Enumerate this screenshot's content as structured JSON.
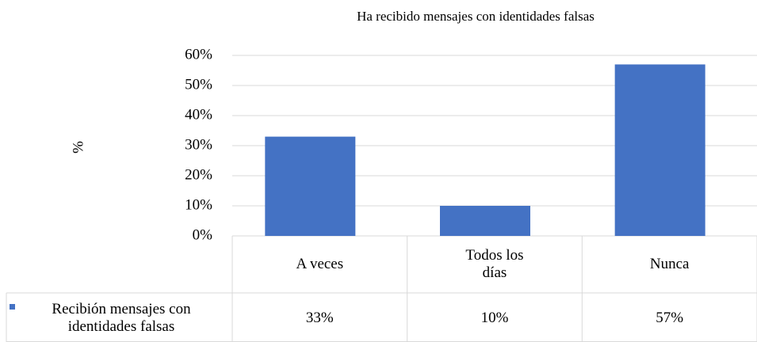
{
  "chart_data": {
    "type": "bar",
    "title": "Ha recibido mensajes con identidades falsas",
    "y_label": "%",
    "categories": [
      "A veces",
      "Todos los días",
      "Nunca"
    ],
    "series": [
      {
        "name": "Recibión mensajes con identidades falsas",
        "color": "#4472c4",
        "values": [
          33,
          10,
          57
        ],
        "value_labels": [
          "33%",
          "10%",
          "57%"
        ]
      }
    ],
    "ylim": [
      0,
      60
    ],
    "yticks": [
      {
        "value": 0,
        "label": "0%"
      },
      {
        "value": 10,
        "label": "10%"
      },
      {
        "value": 20,
        "label": "20%"
      },
      {
        "value": 30,
        "label": "30%"
      },
      {
        "value": 40,
        "label": "40%"
      },
      {
        "value": 50,
        "label": "50%"
      },
      {
        "value": 60,
        "label": "60%"
      }
    ],
    "grid": true
  }
}
